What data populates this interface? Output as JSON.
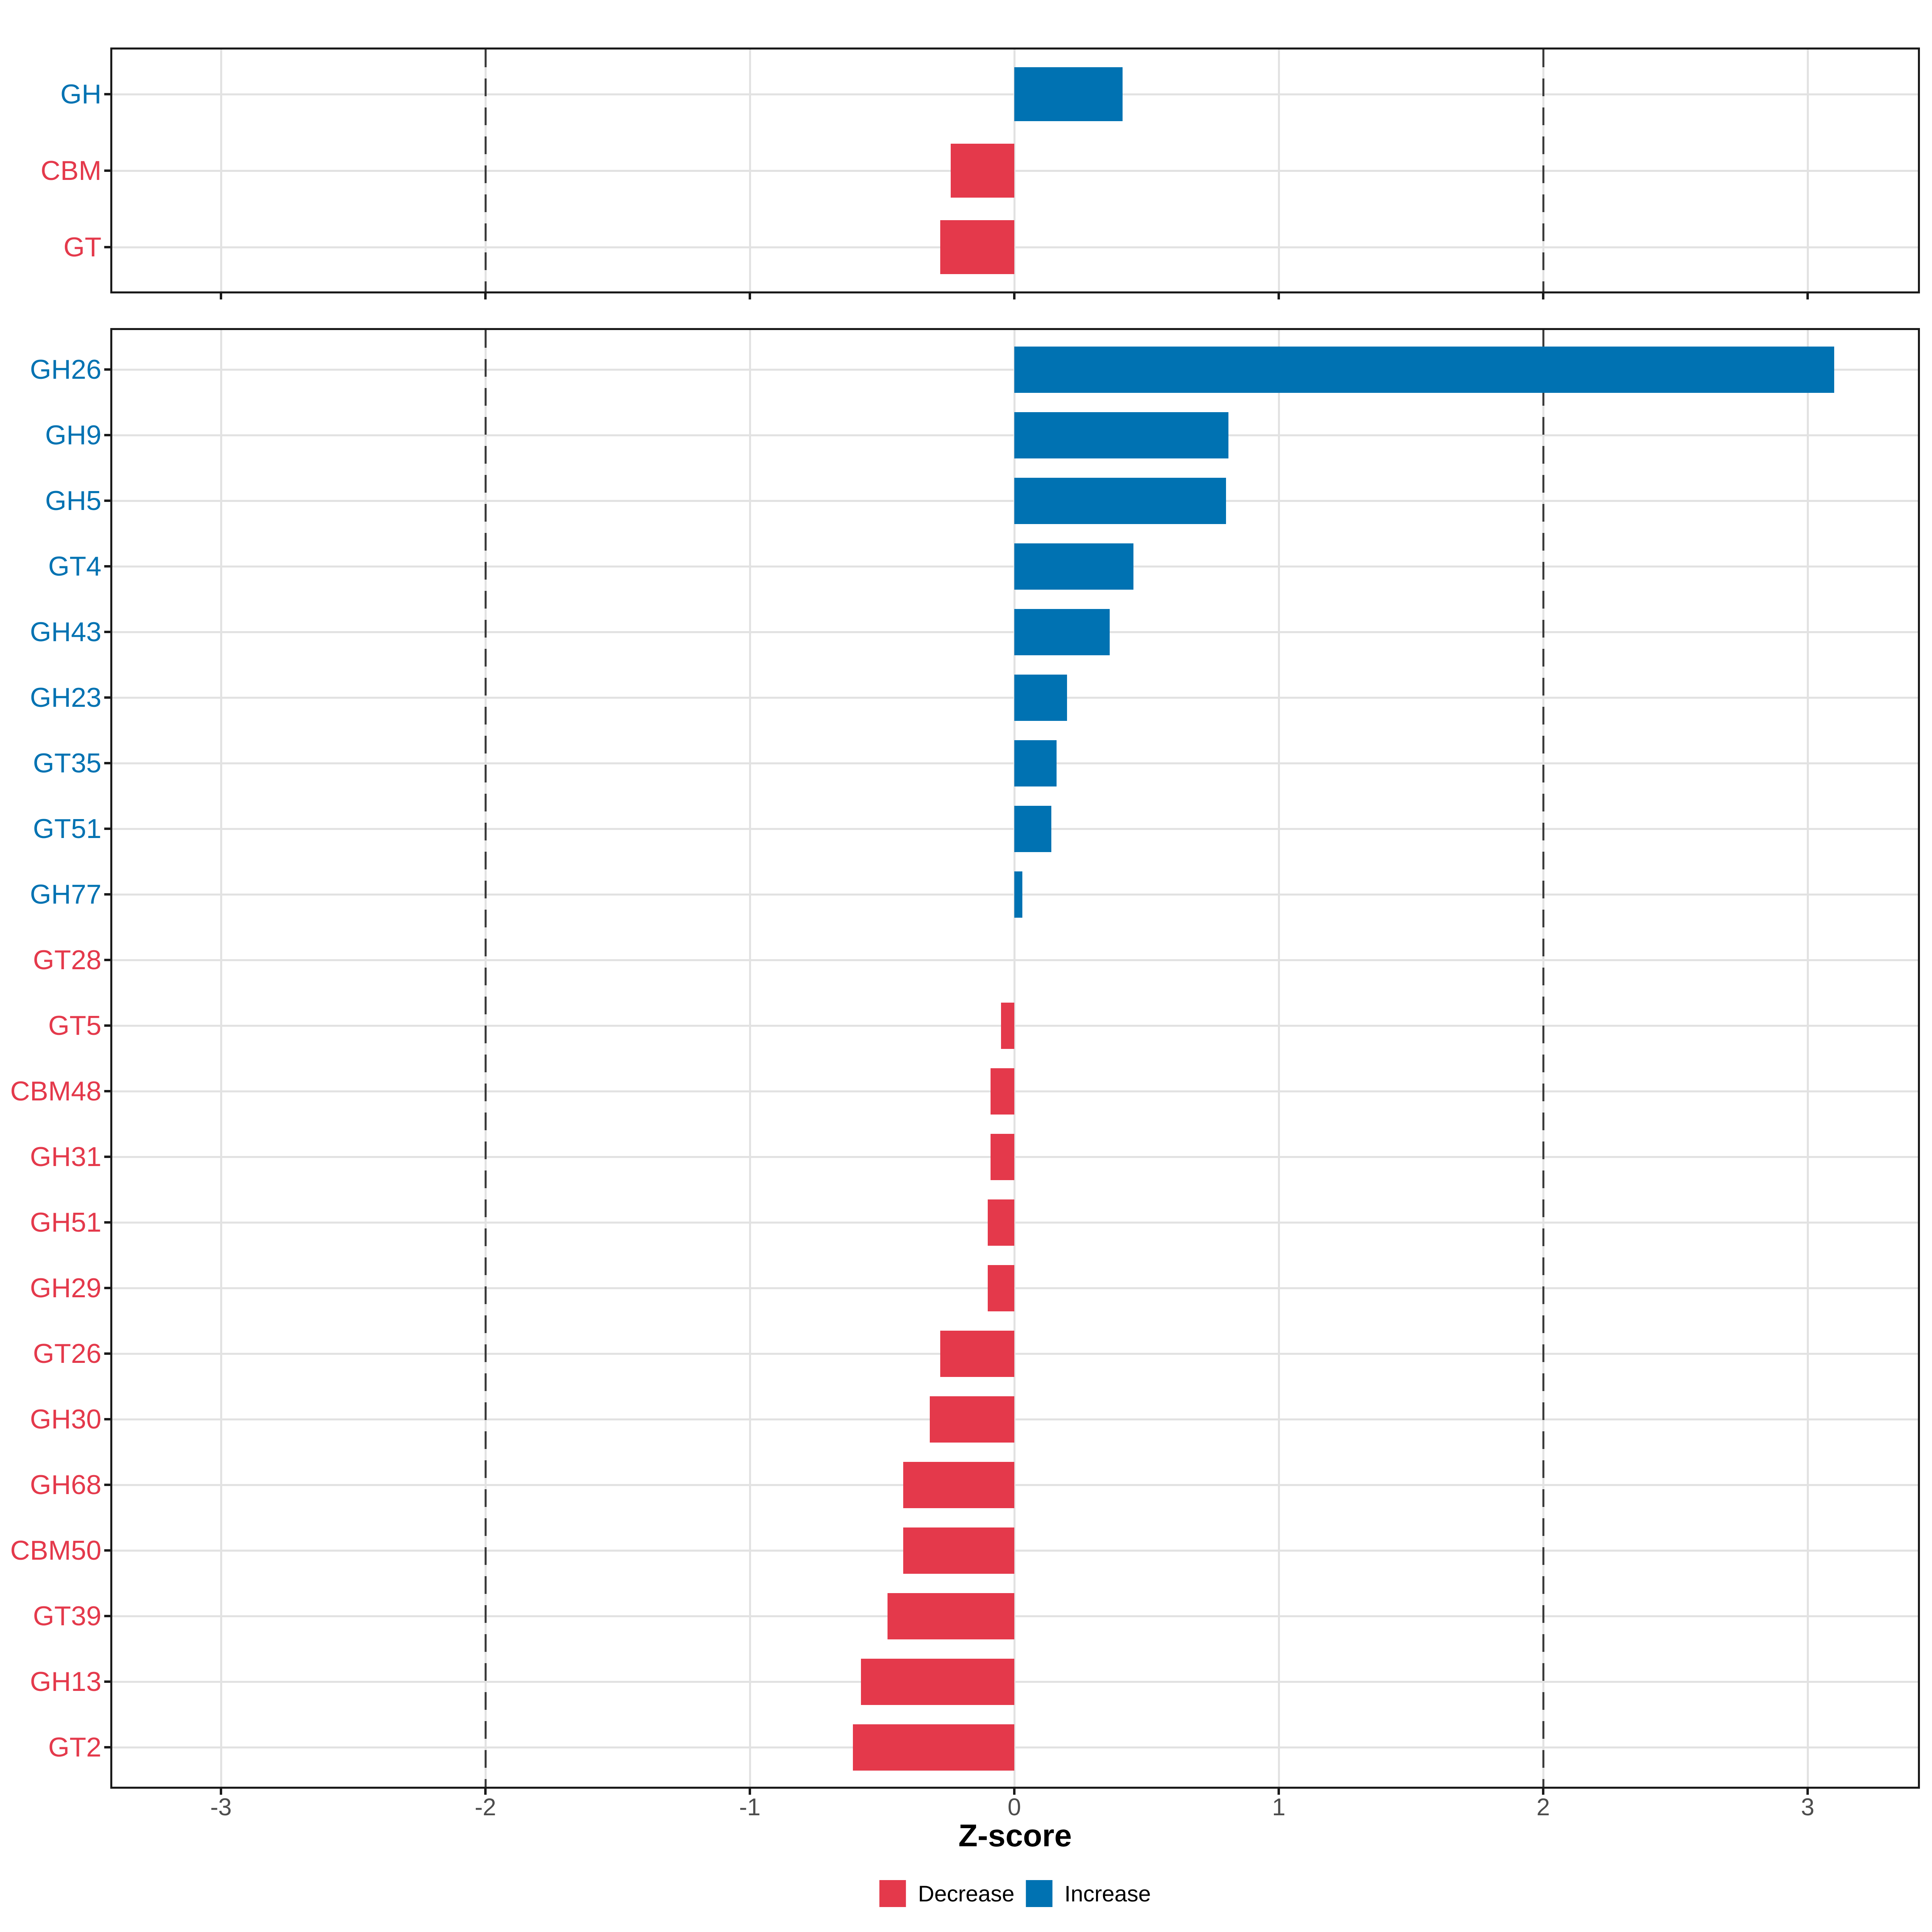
{
  "axis": {
    "title": "Z-score",
    "tick_values": [
      -3,
      -2,
      -1,
      0,
      1,
      2,
      3
    ],
    "tick_labels": [
      "-3",
      "-2",
      "-1",
      "0",
      "1",
      "2",
      "3"
    ],
    "reference_lines": [
      -2,
      2
    ]
  },
  "colors": {
    "increase": "#0072B2",
    "decrease": "#E4394B",
    "grid": "#E2E2E2",
    "panel_border": "#1A1A1A",
    "reference_line": "#3C3C3C",
    "tick_label": "#4D4D4D"
  },
  "legend": {
    "items": [
      {
        "label": "Decrease",
        "color": "#E4394B"
      },
      {
        "label": "Increase",
        "color": "#0072B2"
      }
    ]
  },
  "chart_data": [
    {
      "type": "bar",
      "orientation": "horizontal",
      "panel": "cazyme-classes",
      "xlabel": "Z-score",
      "xlim": [
        -3.4,
        3.4
      ],
      "grid": true,
      "legend_position": "bottom",
      "categories": [
        "GH",
        "CBM",
        "GT"
      ],
      "values": [
        0.41,
        -0.24,
        -0.28
      ],
      "directions": [
        "Increase",
        "Decrease",
        "Decrease"
      ]
    },
    {
      "type": "bar",
      "orientation": "horizontal",
      "panel": "cazyme-families",
      "xlabel": "Z-score",
      "xlim": [
        -3.4,
        3.4
      ],
      "grid": true,
      "legend_position": "bottom",
      "categories": [
        "GH26",
        "GH9",
        "GH5",
        "GT4",
        "GH43",
        "GH23",
        "GT35",
        "GT51",
        "GH77",
        "GT28",
        "GT5",
        "CBM48",
        "GH31",
        "GH51",
        "GH29",
        "GT26",
        "GH30",
        "GH68",
        "CBM50",
        "GT39",
        "GH13",
        "GT2"
      ],
      "values": [
        3.1,
        0.81,
        0.8,
        0.45,
        0.36,
        0.2,
        0.16,
        0.14,
        0.03,
        0,
        -0.05,
        -0.09,
        -0.09,
        -0.1,
        -0.1,
        -0.28,
        -0.32,
        -0.42,
        -0.42,
        -0.48,
        -0.58,
        -0.61
      ],
      "directions": [
        "Increase",
        "Increase",
        "Increase",
        "Increase",
        "Increase",
        "Increase",
        "Increase",
        "Increase",
        "Increase",
        "Decrease",
        "Decrease",
        "Decrease",
        "Decrease",
        "Decrease",
        "Decrease",
        "Decrease",
        "Decrease",
        "Decrease",
        "Decrease",
        "Decrease",
        "Decrease",
        "Decrease"
      ]
    }
  ]
}
